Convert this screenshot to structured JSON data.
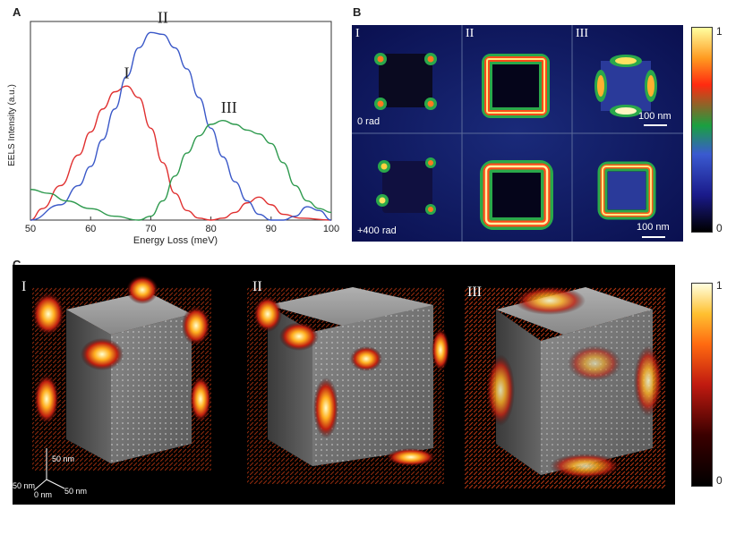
{
  "panel_labels": {
    "a": "A",
    "b": "B",
    "c": "C"
  },
  "chart_data": {
    "type": "line",
    "xlabel": "Energy Loss (meV)",
    "ylabel": "EELS Intensity (a.u.)",
    "xlim": [
      50,
      100
    ],
    "ylim": [
      0,
      1
    ],
    "xticks": [
      "50",
      "60",
      "70",
      "80",
      "90",
      "100"
    ],
    "grid": false,
    "series": [
      {
        "name": "I",
        "color": "#e03030",
        "x": [
          50,
          52,
          55,
          58,
          60,
          62,
          64,
          66,
          68,
          70,
          72,
          74,
          76,
          78,
          80,
          82,
          84,
          86,
          88,
          90,
          92,
          95,
          100
        ],
        "y": [
          0.0,
          0.06,
          0.18,
          0.34,
          0.46,
          0.58,
          0.67,
          0.7,
          0.64,
          0.48,
          0.3,
          0.14,
          0.05,
          0.01,
          0.0,
          0.01,
          0.04,
          0.09,
          0.12,
          0.08,
          0.03,
          0.01,
          0.0
        ]
      },
      {
        "name": "II",
        "color": "#3a58c8",
        "x": [
          50,
          55,
          58,
          60,
          62,
          64,
          66,
          68,
          70,
          72,
          74,
          76,
          78,
          80,
          82,
          84,
          86,
          88,
          90,
          92,
          94,
          96,
          98,
          100
        ],
        "y": [
          0.0,
          0.08,
          0.18,
          0.28,
          0.42,
          0.58,
          0.75,
          0.9,
          0.98,
          0.97,
          0.9,
          0.79,
          0.64,
          0.48,
          0.33,
          0.2,
          0.1,
          0.03,
          0.0,
          0.0,
          0.02,
          0.07,
          0.05,
          0.0
        ]
      },
      {
        "name": "III",
        "color": "#2e9a4e",
        "x": [
          50,
          53,
          56,
          60,
          64,
          68,
          70,
          72,
          74,
          76,
          78,
          80,
          82,
          84,
          86,
          88,
          90,
          92,
          94,
          96,
          98,
          100
        ],
        "y": [
          0.16,
          0.14,
          0.1,
          0.06,
          0.02,
          0.0,
          0.02,
          0.1,
          0.23,
          0.35,
          0.44,
          0.5,
          0.52,
          0.5,
          0.47,
          0.45,
          0.4,
          0.3,
          0.18,
          0.1,
          0.06,
          0.04
        ]
      }
    ],
    "annotations": [
      {
        "text": "I",
        "x": 66,
        "y": 0.74
      },
      {
        "text": "II",
        "x": 72,
        "y": 1.03
      },
      {
        "text": "III",
        "x": 83,
        "y": 0.56
      }
    ]
  },
  "panel_b": {
    "columns": [
      "I",
      "II",
      "III"
    ],
    "row_labels": [
      "0 rad",
      "+400 rad"
    ],
    "scale_bar": "100 nm",
    "colorbar": {
      "max": "1",
      "min": "0"
    }
  },
  "panel_c": {
    "cube_labels": [
      "I",
      "II",
      "III"
    ],
    "axis_labels": {
      "z": "50 nm",
      "x": "50 nm",
      "y": "50 nm",
      "origin": "0 nm"
    },
    "colorbar": {
      "max": "1",
      "min": "0"
    }
  }
}
